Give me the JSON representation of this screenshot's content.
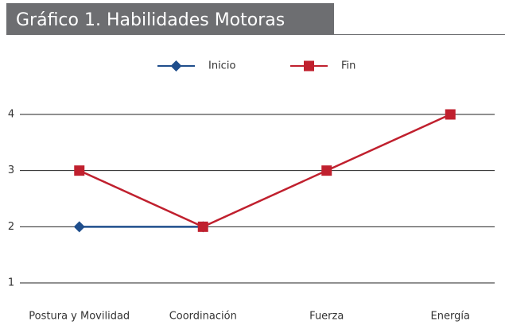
{
  "chart_data": {
    "type": "line",
    "title": "Gráfico 1. Habilidades Motoras",
    "categories": [
      "Postura y Movilidad",
      "Coordinación",
      "Fuerza",
      "Energía"
    ],
    "series": [
      {
        "name": "Inicio",
        "color": "#1f4e8c",
        "marker": "diamond",
        "values": [
          2,
          2,
          null,
          null
        ]
      },
      {
        "name": "Fin",
        "color": "#c0202e",
        "marker": "square",
        "values": [
          3,
          2,
          3,
          4
        ]
      }
    ],
    "ylim": [
      1,
      4
    ],
    "yticks": [
      1,
      2,
      3,
      4
    ],
    "grid": true,
    "legend": "top"
  }
}
